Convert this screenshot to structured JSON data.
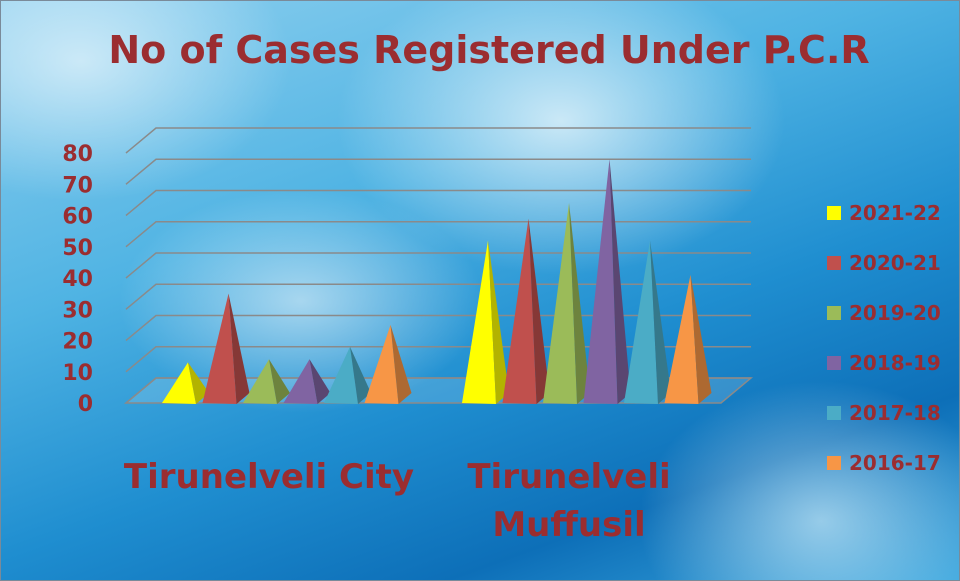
{
  "chart_data": {
    "type": "pyramid",
    "title": "No of Cases Registered Under P.C.R",
    "categories": [
      "Tirunelveli City",
      "Tirunelveli Muffusil"
    ],
    "series": [
      {
        "name": "2021-22",
        "color": "#ffff00",
        "values": [
          13,
          52
        ]
      },
      {
        "name": "2020-21",
        "color": "#c0504d",
        "values": [
          35,
          59
        ]
      },
      {
        "name": "2019-20",
        "color": "#9bbb59",
        "values": [
          14,
          64
        ]
      },
      {
        "name": "2018-19",
        "color": "#8064a2",
        "values": [
          14,
          78
        ]
      },
      {
        "name": "2017-18",
        "color": "#4bacc6",
        "values": [
          18,
          52
        ]
      },
      {
        "name": "2016-17",
        "color": "#f79646",
        "values": [
          25,
          41
        ]
      }
    ],
    "ylim": [
      0,
      80
    ],
    "yticks": [
      0,
      10,
      20,
      30,
      40,
      50,
      60,
      70,
      80
    ],
    "grid": true,
    "legend": "right"
  }
}
